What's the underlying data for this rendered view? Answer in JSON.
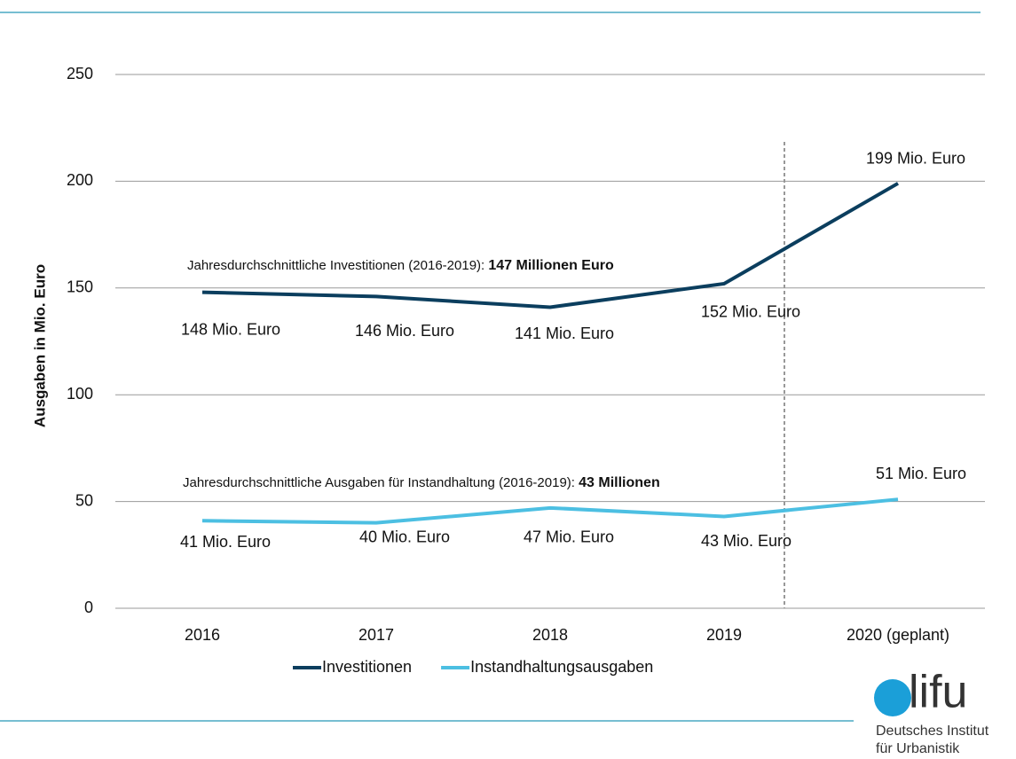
{
  "chart_data": {
    "type": "line",
    "ylabel": "Ausgaben in Mio. Euro",
    "categories": [
      "2016",
      "2017",
      "2018",
      "2019",
      "2020 (geplant)"
    ],
    "series": [
      {
        "name": "Investitionen",
        "color": "#0b3e5e",
        "values": [
          148,
          146,
          141,
          152,
          199
        ],
        "value_labels": [
          "148 Mio. Euro",
          "146 Mio. Euro",
          "141 Mio. Euro",
          "152 Mio. Euro",
          "199 Mio. Euro"
        ]
      },
      {
        "name": "Instandhaltungsausgaben",
        "color": "#4cbfe2",
        "values": [
          41,
          40,
          47,
          43,
          51
        ],
        "value_labels": [
          "41 Mio. Euro",
          "40 Mio. Euro",
          "47 Mio. Euro",
          "43 Mio. Euro",
          "51 Mio. Euro"
        ]
      }
    ],
    "ylim": [
      0,
      250
    ],
    "yticks": [
      0,
      50,
      100,
      150,
      200,
      250
    ],
    "grid": true,
    "legend": "bottom",
    "annotations": [
      {
        "text": "Jahresdurchschnittliche Investitionen (2016-2019): ",
        "bold": "147 Millionen Euro"
      },
      {
        "text": "Jahresdurchschnittliche Ausgaben für Instandhaltung (2016-2019): ",
        "bold": "43 Millionen"
      }
    ]
  },
  "logo": {
    "name": "lifu",
    "line1": "Deutsches Institut",
    "line2": "für Urbanistik"
  }
}
